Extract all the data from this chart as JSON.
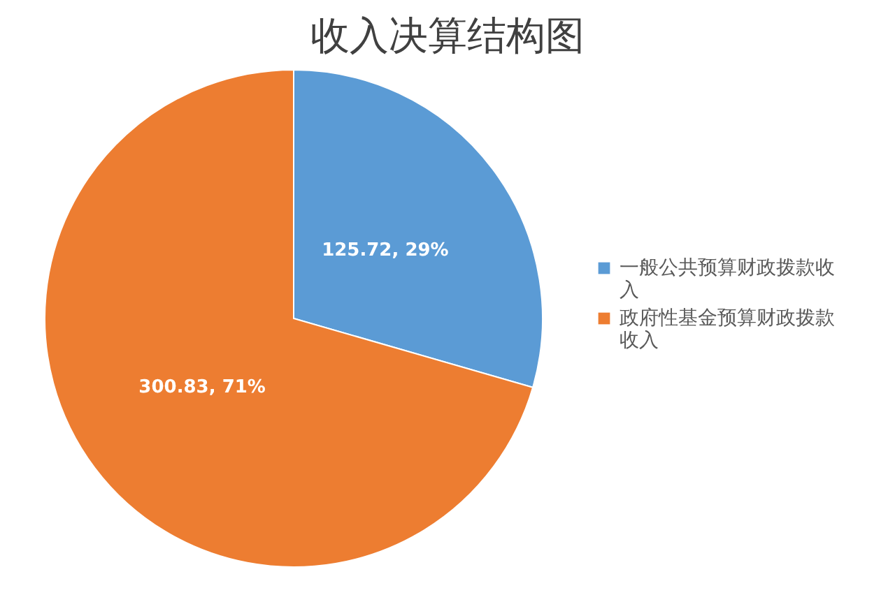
{
  "chart_data": {
    "type": "pie",
    "title": "收入决算结构图",
    "categories": [
      "一般公共预算财政拨款收入",
      "政府性基金预算财政拨款收入"
    ],
    "values": [
      125.72,
      300.83
    ],
    "colors": [
      "#5b9bd5",
      "#ed7d31"
    ],
    "value_labels": [
      "125.72, 29%",
      "300.83, 71%"
    ],
    "legend": "right"
  }
}
